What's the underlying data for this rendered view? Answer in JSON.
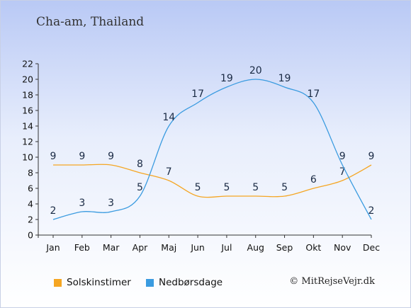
{
  "title": "Cha-am, Thailand",
  "copyright": "© MitRejseVejr.dk",
  "colors": {
    "sunshine": "#f5a623",
    "rain": "#3a9be0"
  },
  "chart_data": {
    "type": "line",
    "categories": [
      "Jan",
      "Feb",
      "Mar",
      "Apr",
      "Maj",
      "Jun",
      "Jul",
      "Aug",
      "Sep",
      "Okt",
      "Nov",
      "Dec"
    ],
    "ylim": [
      0,
      22
    ],
    "yticks": [
      0,
      2,
      4,
      6,
      8,
      10,
      12,
      14,
      16,
      18,
      20,
      22
    ],
    "grid": false,
    "legend_position": "bottom",
    "series": [
      {
        "name": "Solskinstimer",
        "color": "#f5a623",
        "values": [
          9,
          9,
          9,
          8,
          7,
          5,
          5,
          5,
          5,
          6,
          7,
          9
        ]
      },
      {
        "name": "Nedbørsdage",
        "color": "#3a9be0",
        "values": [
          2,
          3,
          3,
          5,
          14,
          17,
          19,
          20,
          19,
          17,
          9,
          2
        ]
      }
    ]
  }
}
